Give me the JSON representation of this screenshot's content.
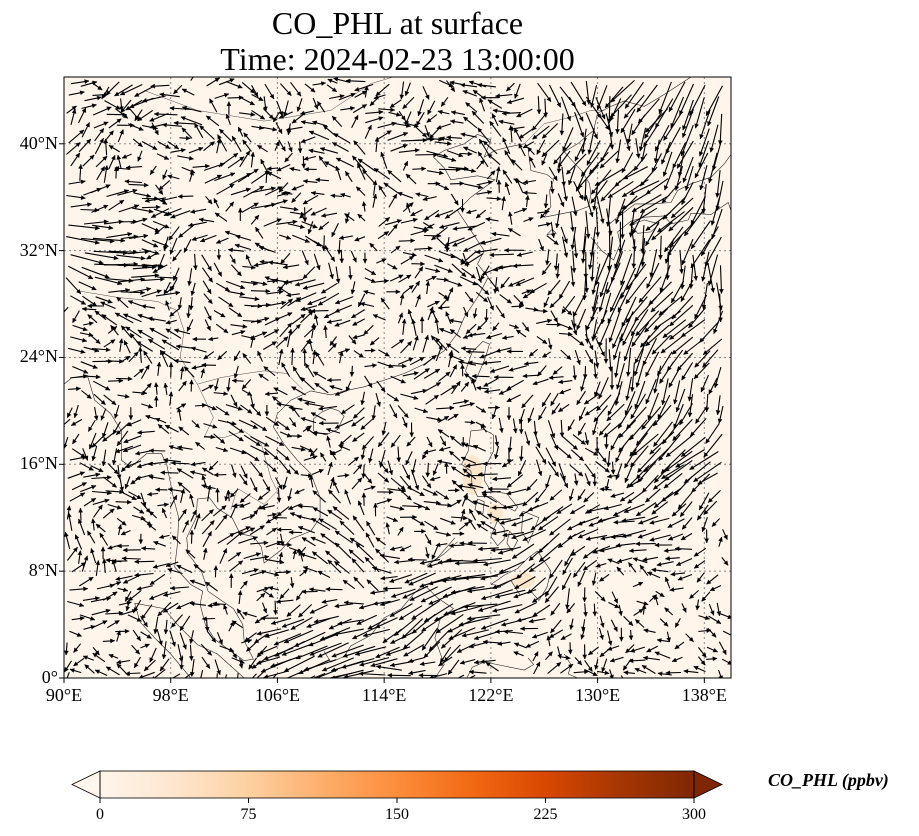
{
  "title": {
    "line1": "CO_PHL at surface",
    "line2": "Time: 2024-02-23 13:00:00"
  },
  "map": {
    "extent": {
      "lon_min": 90,
      "lon_max": 140,
      "lat_min": 0,
      "lat_max": 45
    },
    "lat_ticks": [
      {
        "value": 0,
        "label": "0°"
      },
      {
        "value": 8,
        "label": "8°N"
      },
      {
        "value": 16,
        "label": "16°N"
      },
      {
        "value": 24,
        "label": "24°N"
      },
      {
        "value": 32,
        "label": "32°N"
      },
      {
        "value": 40,
        "label": "40°N"
      }
    ],
    "lon_ticks": [
      {
        "value": 90,
        "label": "90°E"
      },
      {
        "value": 98,
        "label": "98°E"
      },
      {
        "value": 106,
        "label": "106°E"
      },
      {
        "value": 114,
        "label": "114°E"
      },
      {
        "value": 122,
        "label": "122°E"
      },
      {
        "value": 130,
        "label": "130°E"
      },
      {
        "value": 138,
        "label": "138°E"
      }
    ],
    "gridlines": true,
    "background_color": "#fff5eb",
    "hotspot_color": "#fde3c4"
  },
  "colorbar": {
    "label": "CO_PHL (ppbv)",
    "min": 0,
    "max": 300,
    "ticks": [
      {
        "value": 0,
        "label": "0"
      },
      {
        "value": 75,
        "label": "75"
      },
      {
        "value": 150,
        "label": "150"
      },
      {
        "value": 225,
        "label": "225"
      },
      {
        "value": 300,
        "label": "300"
      }
    ],
    "colormap": [
      "#fff5eb",
      "#fee6ce",
      "#fdd0a2",
      "#fdae6b",
      "#fd8d3c",
      "#f16913",
      "#d94801",
      "#a63603",
      "#7f2704"
    ],
    "extend": "both"
  }
}
